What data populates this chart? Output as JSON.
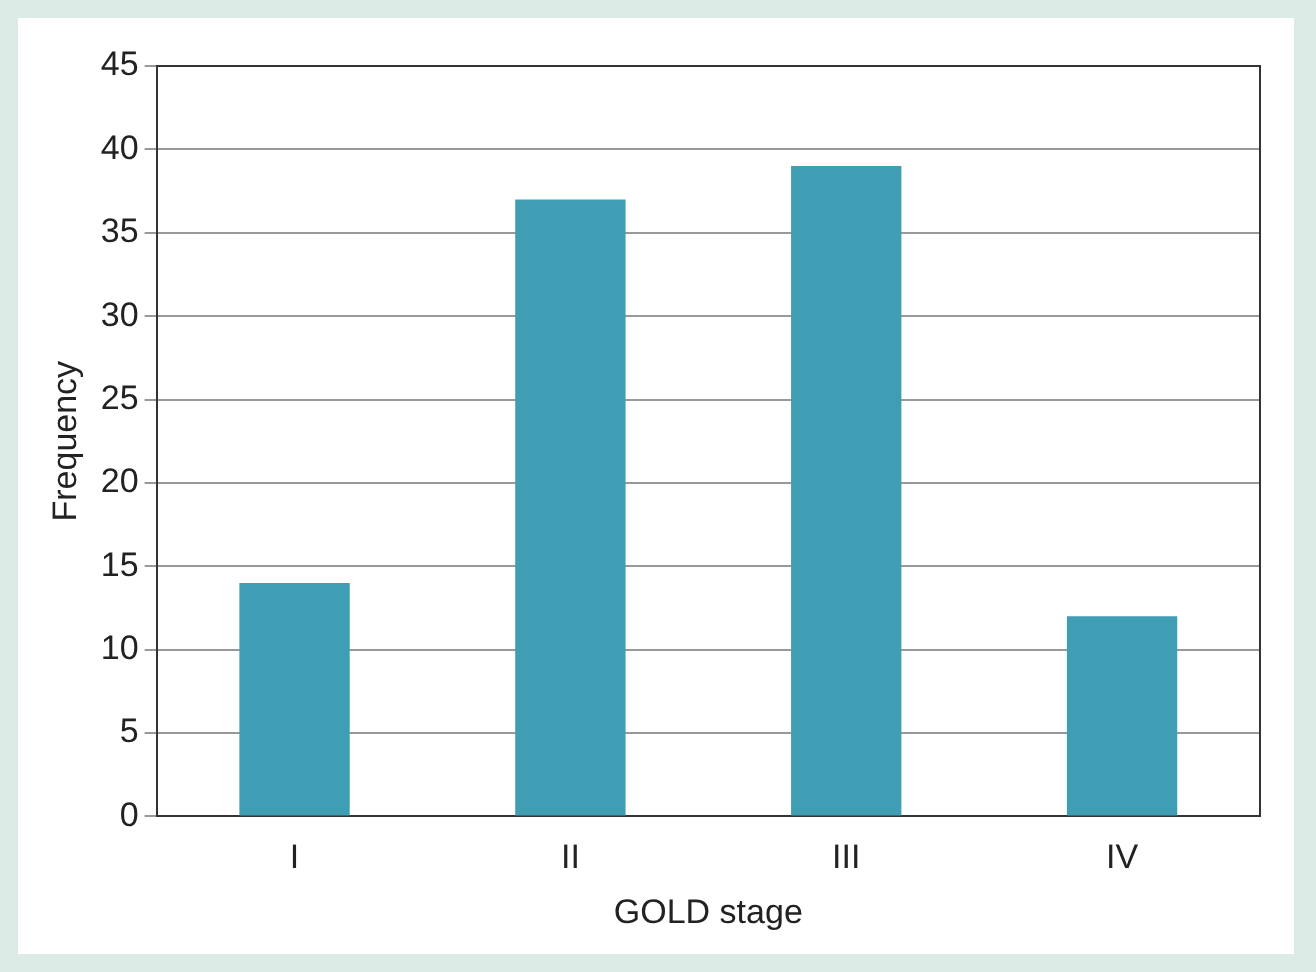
{
  "chart_data": {
    "type": "bar",
    "xlabel": "GOLD stage",
    "ylabel": "Frequency",
    "categories": [
      "I",
      "II",
      "III",
      "IV"
    ],
    "values": [
      14,
      37,
      39,
      12
    ],
    "color": "#3f9db4",
    "ylim": [
      0,
      45
    ],
    "yticks": [
      0,
      5,
      10,
      15,
      20,
      25,
      30,
      35,
      40,
      45
    ],
    "grid": "y",
    "legend": false
  }
}
